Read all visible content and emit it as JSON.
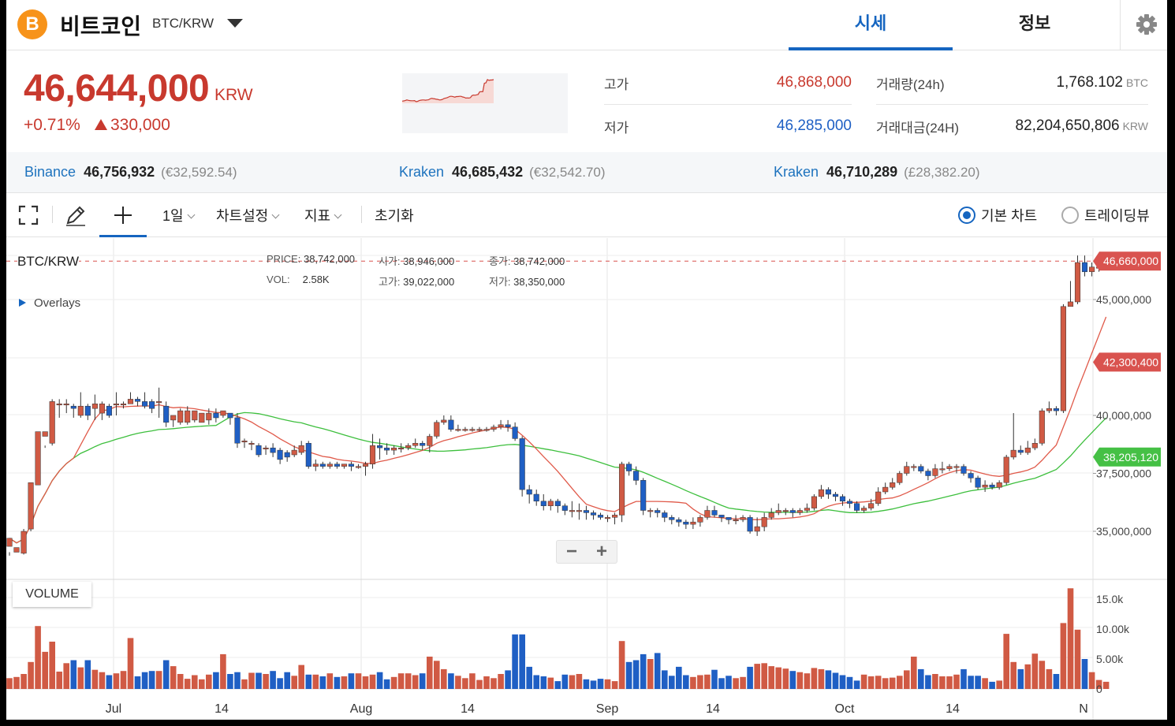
{
  "header": {
    "coin_name": "비트코인",
    "pair": "BTC/KRW",
    "tabs": [
      "시세",
      "정보"
    ],
    "active_tab": "시세",
    "logo_glyph": "B"
  },
  "summary": {
    "price": "46,644,000",
    "unit": "KRW",
    "change_pct": "+0.71%",
    "change_amt": "330,000",
    "high_label": "고가",
    "high": "46,868,000",
    "low_label": "저가",
    "low": "46,285,000",
    "vol_label": "거래량(24h)",
    "vol": "1,768.102",
    "vol_unit": "BTC",
    "amount_label": "거래대금(24H)",
    "amount": "82,204,650,806",
    "amount_unit": "KRW"
  },
  "exchanges": [
    {
      "name": "Binance",
      "price": "46,756,932",
      "foreign": "(€32,592.54)"
    },
    {
      "name": "Kraken",
      "price": "46,685,432",
      "foreign": "(€32,542.70)"
    },
    {
      "name": "Kraken",
      "price": "46,710,289",
      "foreign": "(£28,382.20)"
    }
  ],
  "toolbar": {
    "interval": "1일",
    "chart_settings": "차트설정",
    "indicators": "지표",
    "reset": "초기화",
    "basic_chart": "기본 차트",
    "tradingview": "트레이딩뷰"
  },
  "legend": {
    "pair": "BTC/KRW",
    "price_label": "PRICE:",
    "price": "38,742,000",
    "open_label": "시가:",
    "open": "38,946,000",
    "close_label": "종가:",
    "close": "38,742,000",
    "vol_label": "VOL:",
    "vol": "2.58K",
    "high_label": "고가:",
    "high": "39,022,000",
    "low_label": "저가:",
    "low": "38,350,000",
    "overlays": "Overlays",
    "volume": "VOLUME"
  },
  "colors": {
    "up": "#d05a44",
    "down": "#1f5fc4",
    "ma_short": "#e05a4a",
    "ma_long": "#3dbf3d",
    "accent": "#1565c0"
  },
  "chart_data": {
    "type": "candlestick",
    "price_axis_ticks": [
      "45,000,000",
      "40,000,000",
      "37,500,000",
      "35,000,000"
    ],
    "price_axis_values": [
      45000000,
      40000000,
      37500000,
      35000000
    ],
    "current_price_tag": "46,660,000",
    "ma_short_tag": "42,300,400",
    "ma_long_tag": "38,205,120",
    "volume_axis_ticks": [
      "15.0k",
      "10.00k",
      "5.00k",
      "0"
    ],
    "volume_axis_values": [
      15000,
      10000,
      5000,
      0
    ],
    "x_ticks": [
      "Jul",
      "14",
      "Aug",
      "14",
      "Sep",
      "14",
      "Oct",
      "14",
      "N"
    ],
    "candles": [
      [
        34350000,
        34700000,
        34100000,
        33950000,
        1800
      ],
      [
        34100000,
        34300000,
        34000000,
        34000000,
        2000
      ],
      [
        34050000,
        35000000,
        34000000,
        35100000,
        2500
      ],
      [
        35100000,
        37100000,
        35000000,
        37000000,
        4500
      ],
      [
        37000000,
        39300000,
        37000000,
        39100000,
        10500
      ],
      [
        39100000,
        39300000,
        38600000,
        38700000,
        6200
      ],
      [
        38800000,
        40600000,
        38700000,
        40700000,
        7900
      ],
      [
        40500000,
        40500000,
        40700000,
        39900000,
        2900
      ],
      [
        40500000,
        40500000,
        40700000,
        40100000,
        4300
      ],
      [
        40400000,
        40300000,
        40500000,
        39900000,
        4800
      ],
      [
        40000000,
        40400000,
        39900000,
        41000000,
        3600
      ],
      [
        40400000,
        40000000,
        40500000,
        39800000,
        4800
      ],
      [
        40300000,
        40500000,
        39800000,
        40900000,
        3200
      ],
      [
        40100000,
        40500000,
        39800000,
        40600000,
        2800
      ],
      [
        40400000,
        40000000,
        40500000,
        39900000,
        2300
      ],
      [
        40500000,
        40500000,
        41000000,
        40000000,
        2600
      ],
      [
        40500000,
        40500000,
        40600000,
        40300000,
        3000
      ],
      [
        40500000,
        40700000,
        40600000,
        41000000,
        8500
      ],
      [
        40700000,
        40600000,
        40800000,
        40400000,
        2100
      ],
      [
        40600000,
        40400000,
        41000000,
        40300000,
        2800
      ],
      [
        40600000,
        40300000,
        40700000,
        40100000,
        3000
      ],
      [
        40600000,
        40600000,
        41200000,
        39900000,
        3000
      ],
      [
        40400000,
        39700000,
        40600000,
        39500000,
        4800
      ],
      [
        39800000,
        40000000,
        40000000,
        39500000,
        3800
      ],
      [
        39700000,
        40200000,
        40300000,
        39600000,
        2500
      ],
      [
        39700000,
        40200000,
        40400000,
        39600000,
        1700
      ],
      [
        39800000,
        40200000,
        40100000,
        39700000,
        2300
      ],
      [
        39700000,
        40100000,
        40000000,
        39700000,
        1600
      ],
      [
        39800000,
        40100000,
        40300000,
        39600000,
        2400
      ],
      [
        40100000,
        39900000,
        40300000,
        39700000,
        2800
      ],
      [
        40000000,
        40200000,
        40100000,
        39900000,
        5800
      ],
      [
        40100000,
        39900000,
        40100000,
        39600000,
        2500
      ],
      [
        39900000,
        38800000,
        40100000,
        38600000,
        2800
      ],
      [
        38900000,
        38900000,
        39000000,
        38600000,
        1600
      ],
      [
        38800000,
        38800000,
        38900000,
        38500000,
        2700
      ],
      [
        38700000,
        38300000,
        38800000,
        38200000,
        2700
      ],
      [
        38600000,
        38600000,
        38700000,
        38300000,
        2500
      ],
      [
        38600000,
        38400000,
        38800000,
        38200000,
        3000
      ],
      [
        38500000,
        38100000,
        38600000,
        37900000,
        1800
      ],
      [
        38400000,
        38200000,
        38500000,
        38000000,
        2800
      ],
      [
        38300000,
        38500000,
        38700000,
        38200000,
        2200
      ],
      [
        38400000,
        38700000,
        38900000,
        38300000,
        4000
      ],
      [
        38800000,
        37800000,
        38900000,
        37700000,
        2400
      ],
      [
        37800000,
        37900000,
        38100000,
        37600000,
        2400
      ],
      [
        37900000,
        37800000,
        38000000,
        37700000,
        2100
      ],
      [
        37800000,
        37900000,
        38000000,
        37700000,
        2600
      ],
      [
        37900000,
        37800000,
        38000000,
        37700000,
        2000
      ],
      [
        37800000,
        37900000,
        37900000,
        37700000,
        2100
      ],
      [
        37900000,
        37800000,
        38000000,
        37600000,
        2600
      ],
      [
        37800000,
        37800000,
        37900000,
        37700000,
        2600
      ],
      [
        37800000,
        37900000,
        38000000,
        37400000,
        2100
      ],
      [
        37900000,
        38700000,
        39200000,
        37700000,
        2400
      ],
      [
        38700000,
        38600000,
        39000000,
        38100000,
        2800
      ],
      [
        38600000,
        38500000,
        38800000,
        38300000,
        1600
      ],
      [
        38500000,
        38600000,
        38700000,
        38300000,
        2000
      ],
      [
        38600000,
        38600000,
        38800000,
        38400000,
        2600
      ],
      [
        38600000,
        38700000,
        38800000,
        38500000,
        2600
      ],
      [
        38700000,
        38800000,
        39000000,
        38600000,
        2300
      ],
      [
        38800000,
        38700000,
        38900000,
        38500000,
        2600
      ],
      [
        38700000,
        39100000,
        39200000,
        38400000,
        5400
      ],
      [
        39100000,
        39700000,
        39800000,
        39000000,
        4700
      ],
      [
        39700000,
        39800000,
        40000000,
        39600000,
        3300
      ],
      [
        39800000,
        39400000,
        40000000,
        39300000,
        2600
      ],
      [
        39400000,
        39400000,
        39600000,
        39300000,
        2200
      ],
      [
        39400000,
        39400000,
        39500000,
        39300000,
        1800
      ],
      [
        39400000,
        39400000,
        39500000,
        39300000,
        2600
      ],
      [
        39400000,
        39400000,
        39500000,
        39300000,
        1500
      ],
      [
        39400000,
        39400000,
        39500000,
        39300000,
        2100
      ],
      [
        39400000,
        39500000,
        39600000,
        39300000,
        1800
      ],
      [
        39500000,
        39600000,
        39800000,
        39400000,
        2500
      ],
      [
        39600000,
        39500000,
        39800000,
        39300000,
        3100
      ],
      [
        39500000,
        39000000,
        39700000,
        38900000,
        9100
      ],
      [
        39000000,
        36800000,
        39100000,
        36500000,
        9100
      ],
      [
        36800000,
        36600000,
        37000000,
        36200000,
        3700
      ],
      [
        36600000,
        36300000,
        36800000,
        36100000,
        2300
      ],
      [
        36300000,
        36100000,
        36600000,
        35900000,
        2100
      ],
      [
        36100000,
        36300000,
        36400000,
        35900000,
        1900
      ],
      [
        36300000,
        36100000,
        36400000,
        35800000,
        1300
      ],
      [
        36100000,
        35900000,
        36200000,
        35700000,
        2400
      ],
      [
        35900000,
        35900000,
        36300000,
        35600000,
        2300
      ],
      [
        35900000,
        35900000,
        36200000,
        35500000,
        2500
      ],
      [
        35900000,
        35800000,
        36100000,
        35500000,
        1600
      ],
      [
        35800000,
        35700000,
        35900000,
        35500000,
        1400
      ],
      [
        35700000,
        35600000,
        35800000,
        35500000,
        1700
      ],
      [
        35600000,
        35600000,
        35700000,
        35400000,
        1600
      ],
      [
        35600000,
        35700000,
        35800000,
        35300000,
        1300
      ],
      [
        35700000,
        37900000,
        38000000,
        35400000,
        8000
      ],
      [
        37900000,
        37600000,
        38000000,
        37400000,
        4500
      ],
      [
        37600000,
        37200000,
        37800000,
        37000000,
        4800
      ],
      [
        37200000,
        35900000,
        37300000,
        35700000,
        5800
      ],
      [
        35900000,
        35900000,
        36000000,
        35600000,
        5000
      ],
      [
        35900000,
        35800000,
        36000000,
        35600000,
        6000
      ],
      [
        35800000,
        35600000,
        35900000,
        35400000,
        3100
      ],
      [
        35600000,
        35500000,
        35700000,
        35300000,
        2200
      ],
      [
        35500000,
        35400000,
        35600000,
        35200000,
        3700
      ],
      [
        35400000,
        35300000,
        35500000,
        35100000,
        2300
      ],
      [
        35300000,
        35400000,
        35600000,
        35100000,
        2000
      ],
      [
        35400000,
        35600000,
        35700000,
        35200000,
        2300
      ],
      [
        35600000,
        35900000,
        36100000,
        35500000,
        2400
      ],
      [
        35900000,
        35700000,
        36100000,
        35600000,
        3200
      ],
      [
        35700000,
        35600000,
        35700000,
        35400000,
        1800
      ],
      [
        35600000,
        35500000,
        35600000,
        35300000,
        2200
      ],
      [
        35500000,
        35500000,
        35700000,
        35300000,
        1800
      ],
      [
        35500000,
        35600000,
        35700000,
        35400000,
        2000
      ],
      [
        35600000,
        35000000,
        35700000,
        34900000,
        3700
      ],
      [
        35000000,
        35200000,
        35600000,
        34800000,
        4200
      ],
      [
        35200000,
        35600000,
        35800000,
        35000000,
        4300
      ],
      [
        35600000,
        35800000,
        36000000,
        35500000,
        3800
      ],
      [
        35800000,
        35900000,
        36200000,
        35700000,
        3600
      ],
      [
        35900000,
        35900000,
        36000000,
        35700000,
        3400
      ],
      [
        35900000,
        35800000,
        36000000,
        35600000,
        3000
      ],
      [
        35800000,
        35900000,
        36000000,
        35700000,
        2800
      ],
      [
        35900000,
        36000000,
        36200000,
        35800000,
        2600
      ],
      [
        36000000,
        36500000,
        36600000,
        35900000,
        3500
      ],
      [
        36500000,
        36800000,
        37000000,
        36400000,
        3300
      ],
      [
        36800000,
        36600000,
        36900000,
        36400000,
        3100
      ],
      [
        36600000,
        36500000,
        36700000,
        36300000,
        2700
      ],
      [
        36500000,
        36300000,
        36600000,
        36100000,
        2300
      ],
      [
        36300000,
        36200000,
        36400000,
        36000000,
        2000
      ],
      [
        36200000,
        35900000,
        36300000,
        35800000,
        1400
      ],
      [
        35900000,
        36000000,
        36100000,
        35800000,
        2400
      ],
      [
        36000000,
        36200000,
        36400000,
        35900000,
        2100
      ],
      [
        36200000,
        36700000,
        36900000,
        36100000,
        2200
      ],
      [
        36700000,
        36900000,
        37100000,
        36600000,
        1800
      ],
      [
        36900000,
        37100000,
        37300000,
        36800000,
        1900
      ],
      [
        37100000,
        37500000,
        37600000,
        37000000,
        2200
      ],
      [
        37500000,
        37800000,
        38000000,
        37400000,
        3100
      ],
      [
        37800000,
        37800000,
        37900000,
        37600000,
        5400
      ],
      [
        37800000,
        37600000,
        37900000,
        37500000,
        3300
      ],
      [
        37600000,
        37400000,
        37700000,
        37200000,
        2300
      ],
      [
        37400000,
        37700000,
        37900000,
        37300000,
        2500
      ],
      [
        37700000,
        37700000,
        38000000,
        37500000,
        2100
      ],
      [
        37700000,
        37800000,
        37900000,
        37600000,
        2100
      ],
      [
        37800000,
        37800000,
        37900000,
        37500000,
        2400
      ],
      [
        37800000,
        37500000,
        37900000,
        37400000,
        3300
      ],
      [
        37500000,
        37300000,
        37600000,
        37100000,
        2200
      ],
      [
        37300000,
        36900000,
        37400000,
        36800000,
        2200
      ],
      [
        36900000,
        37000000,
        37200000,
        36700000,
        1800
      ],
      [
        37000000,
        36900000,
        37100000,
        36800000,
        1200
      ],
      [
        36900000,
        37100000,
        37200000,
        36800000,
        1400
      ],
      [
        37100000,
        38200000,
        38300000,
        37000000,
        9200
      ],
      [
        38200000,
        38500000,
        40100000,
        38100000,
        4500
      ],
      [
        38500000,
        38400000,
        38700000,
        38300000,
        3300
      ],
      [
        38400000,
        38600000,
        38900000,
        38300000,
        4100
      ],
      [
        38600000,
        38800000,
        39000000,
        38500000,
        5900
      ],
      [
        38800000,
        40200000,
        40300000,
        38700000,
        4700
      ],
      [
        40200000,
        40300000,
        40600000,
        40100000,
        3300
      ],
      [
        40300000,
        40200000,
        40400000,
        40000000,
        2500
      ],
      [
        40200000,
        44700000,
        44800000,
        40100000,
        11000
      ],
      [
        44700000,
        44900000,
        45800000,
        44800000,
        16800
      ],
      [
        44900000,
        46600000,
        46900000,
        44800000,
        9900
      ],
      [
        46600000,
        46200000,
        46900000,
        46000000,
        5000
      ],
      [
        46200000,
        46400000,
        46600000,
        46000000,
        2800
      ],
      [
        46400000,
        46400000,
        46600000,
        46200000,
        1500
      ],
      [
        46400000,
        46600000,
        46800000,
        46300000,
        1200
      ]
    ]
  }
}
